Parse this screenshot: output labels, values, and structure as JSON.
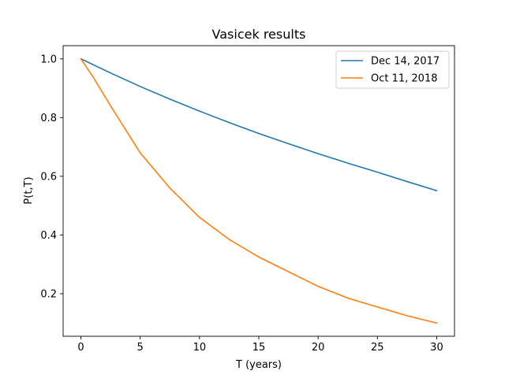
{
  "chart_data": {
    "type": "line",
    "title": "Vasicek results",
    "xlabel": "T (years)",
    "ylabel": "P(t,T)",
    "xlim": [
      -1.5,
      31.5
    ],
    "ylim": [
      0.055,
      1.045
    ],
    "xticks": [
      0,
      5,
      10,
      15,
      20,
      25,
      30
    ],
    "yticks": [
      0.2,
      0.4,
      0.6,
      0.8,
      1.0
    ],
    "xtick_labels": [
      "0",
      "5",
      "10",
      "15",
      "20",
      "25",
      "30"
    ],
    "ytick_labels": [
      "0.2",
      "0.4",
      "0.6",
      "0.8",
      "1.0"
    ],
    "grid": false,
    "legend_position": "top-right",
    "series": [
      {
        "name": "Dec 14, 2017",
        "color": "#1f77b4",
        "x": [
          0,
          2.5,
          5,
          7.5,
          10,
          12.5,
          15,
          17.5,
          20,
          22.5,
          25,
          27.5,
          30
        ],
        "y": [
          1.0,
          0.952,
          0.906,
          0.863,
          0.822,
          0.783,
          0.746,
          0.711,
          0.677,
          0.645,
          0.614,
          0.582,
          0.551
        ]
      },
      {
        "name": "Oct 11, 2018",
        "color": "#ff7f0e",
        "x": [
          0,
          1,
          2.5,
          5,
          7.5,
          10,
          12.5,
          15,
          17.5,
          20,
          22.5,
          25,
          27.5,
          30
        ],
        "y": [
          1.0,
          0.94,
          0.84,
          0.68,
          0.56,
          0.46,
          0.385,
          0.325,
          0.275,
          0.225,
          0.185,
          0.155,
          0.125,
          0.1
        ]
      }
    ]
  }
}
